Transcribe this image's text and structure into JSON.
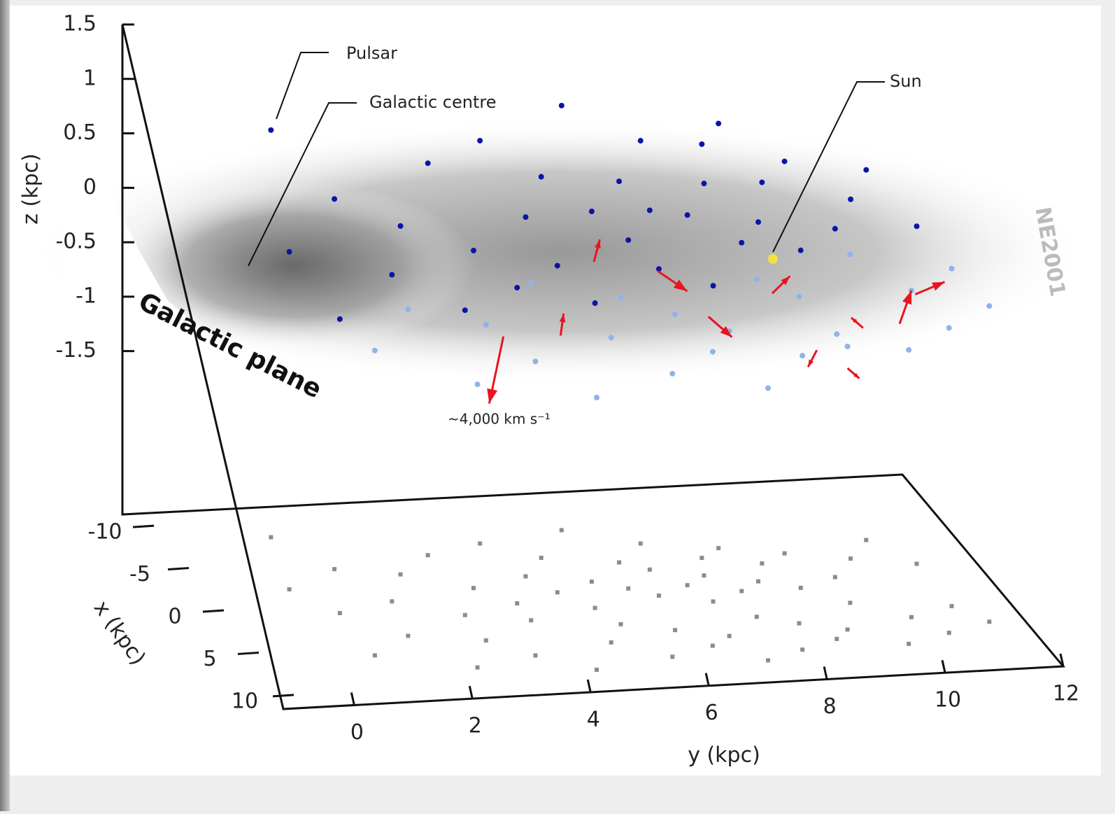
{
  "chart_data": {
    "type": "scatter3d",
    "zlabel": "z (kpc)",
    "xlabel": "x (kpc)",
    "ylabel": "y (kpc)",
    "zlim": [
      -3,
      1.5
    ],
    "zticks": [
      1.5,
      1,
      0.5,
      0,
      -0.5,
      -1,
      -1.5
    ],
    "xlim": [
      -11.5,
      11.5
    ],
    "xticks": [
      -10,
      -5,
      0,
      5,
      10
    ],
    "ylim": [
      -1.2,
      12
    ],
    "yticks": [
      0,
      2,
      4,
      6,
      8,
      10,
      12
    ],
    "floor_color": "#8c8c8c",
    "series": [
      {
        "color": "#0a14a8",
        "y": [
          0.9,
          0.5,
          1,
          1.5,
          2,
          2.5,
          3,
          3.2,
          3.5,
          4,
          4.2,
          4.5,
          4.8,
          5,
          5.2,
          5.5,
          5.7,
          6,
          6.2,
          6.4,
          6.6,
          6.8,
          7,
          7.2,
          7.4,
          7.6,
          7.8,
          8,
          8.2,
          8.5,
          8.8,
          9,
          9.5,
          10,
          10.5,
          11
        ],
        "x": [
          -8,
          -2,
          1,
          -4,
          0,
          -3,
          2,
          -5,
          -1,
          1,
          -6,
          -2,
          0,
          -4,
          2,
          -1,
          -7,
          0,
          -3,
          1,
          -2,
          -5,
          0,
          2,
          -1,
          -3,
          1,
          -4,
          0,
          -2,
          1,
          -3,
          0,
          -2,
          -4,
          -1
        ],
        "z": [
          0.74,
          0.1,
          -0.3,
          0.4,
          0,
          0.2,
          -0.2,
          0.6,
          0.1,
          -0.1,
          0.7,
          0.3,
          0,
          0.5,
          -0.2,
          0.4,
          0.9,
          0.2,
          0.5,
          0,
          0.3,
          0.7,
          0.4,
          -0.1,
          0.6,
          0.8,
          0.2,
          0.9,
          0.3,
          0.5,
          0.1,
          0.6,
          0.2,
          0.3,
          0.4,
          0.1
        ]
      },
      {
        "color": "#8fb3e8",
        "y": [
          1,
          1.8,
          2.5,
          3,
          3.6,
          4,
          4.4,
          5,
          5.4,
          5.8,
          6.2,
          6.6,
          7,
          7.3,
          7.7,
          8,
          8.3,
          8.7,
          9,
          9.4,
          9.8,
          10.2,
          10.6,
          11,
          11.4
        ],
        "x": [
          6,
          4,
          8,
          5,
          7,
          3,
          9,
          6,
          4,
          8,
          5,
          7,
          6,
          9,
          4,
          8,
          5,
          7,
          6,
          3,
          8,
          5,
          7,
          4,
          6
        ],
        "z": [
          -0.2,
          0,
          -0.4,
          -0.1,
          -0.3,
          0.1,
          -0.5,
          -0.2,
          0,
          -0.4,
          -0.1,
          -0.3,
          -0.2,
          -0.5,
          0.1,
          -0.3,
          0,
          -0.2,
          -0.4,
          0.2,
          -0.3,
          0,
          -0.2,
          0.1,
          -0.1
        ]
      }
    ],
    "arrows": {
      "color": "#e8141e",
      "y": [
        3.65,
        8.2,
        7,
        9.5,
        5.3,
        9,
        10.5,
        4.5,
        8.6,
        10,
        6.5
      ],
      "x": [
        2,
        2,
        3,
        4,
        1,
        6,
        3,
        3,
        5,
        5,
        0
      ],
      "z": [
        -0.46,
        -0.2,
        -0.3,
        -0.4,
        0.1,
        -0.6,
        -0.2,
        -0.4,
        -0.5,
        -0.3,
        -0.1
      ],
      "dy": [
        -0.24,
        0.3,
        0.4,
        -0.2,
        0.1,
        0.2,
        0.5,
        0.05,
        -0.15,
        0.2,
        0.5
      ],
      "dz": [
        -0.61,
        0.15,
        -0.2,
        0.1,
        0.2,
        -0.1,
        0.1,
        0.2,
        -0.15,
        0.3,
        -0.2
      ]
    },
    "annotations": {
      "pulsar": "Pulsar",
      "galactic_centre": "Galactic centre",
      "sun": "Sun",
      "galactic_plane": "Galactic plane",
      "speed": "~4,000 km s⁻¹",
      "model": "NE2001"
    }
  }
}
